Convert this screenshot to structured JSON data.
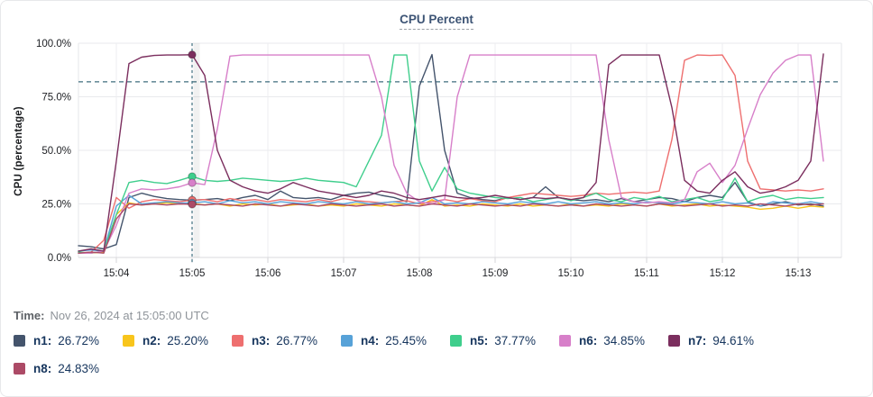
{
  "title": "CPU Percent",
  "time_row": {
    "label": "Time:",
    "value": "Nov 26, 2024 at 15:05:00 UTC"
  },
  "legend": {
    "items": [
      {
        "id": "n1",
        "label": "n1:",
        "value": "26.72%",
        "color": "#44546c"
      },
      {
        "id": "n2",
        "label": "n2:",
        "value": "25.20%",
        "color": "#f8c51c"
      },
      {
        "id": "n3",
        "label": "n3:",
        "value": "26.77%",
        "color": "#ee6f6f"
      },
      {
        "id": "n4",
        "label": "n4:",
        "value": "25.45%",
        "color": "#57a2d8"
      },
      {
        "id": "n5",
        "label": "n5:",
        "value": "37.77%",
        "color": "#3fce8c"
      },
      {
        "id": "n6",
        "label": "n6:",
        "value": "34.85%",
        "color": "#d77fc9"
      },
      {
        "id": "n7",
        "label": "n7:",
        "value": "94.61%",
        "color": "#7b2e5e"
      },
      {
        "id": "n8",
        "label": "n8:",
        "value": "24.83%",
        "color": "#ac4a66"
      }
    ]
  },
  "chart_data": {
    "type": "line",
    "title": "CPU Percent",
    "ylabel": "CPU (percentage)",
    "y_ticks": [
      "0.0%",
      "25.0%",
      "50.0%",
      "75.0%",
      "100.0%"
    ],
    "y_tick_values": [
      0,
      25,
      50,
      75,
      100
    ],
    "ylim": [
      0,
      100
    ],
    "x_ticks": [
      "15:04",
      "15:05",
      "15:06",
      "15:07",
      "15:08",
      "15:09",
      "15:10",
      "15:11",
      "15:12",
      "15:13"
    ],
    "grid": true,
    "legend_position": "bottom",
    "threshold_percent": 82,
    "crosshair": {
      "index": 9,
      "time_label": "15:05"
    },
    "t_minutes_from_1504": [
      -0.5,
      -0.333,
      -0.167,
      0,
      0.167,
      0.333,
      0.5,
      0.667,
      0.833,
      1,
      1.167,
      1.333,
      1.5,
      1.667,
      1.833,
      2,
      2.167,
      2.333,
      2.5,
      2.667,
      2.833,
      3,
      3.167,
      3.333,
      3.5,
      3.667,
      3.833,
      4,
      4.167,
      4.333,
      4.5,
      4.667,
      4.833,
      5,
      5.167,
      5.333,
      5.5,
      5.667,
      5.833,
      6,
      6.167,
      6.333,
      6.5,
      6.667,
      6.833,
      7,
      7.167,
      7.333,
      7.5,
      7.667,
      7.833,
      8,
      8.167,
      8.333,
      8.5,
      8.667,
      8.833,
      9,
      9.167,
      9.333
    ],
    "series": [
      {
        "name": "n1",
        "color": "#44546c",
        "values": [
          5.5,
          5,
          4,
          6,
          28,
          30,
          28.5,
          27.5,
          27,
          26.72,
          27,
          27.5,
          26.5,
          28,
          29,
          27,
          31,
          28,
          27.5,
          28,
          27,
          29,
          30,
          30.5,
          29,
          28,
          26,
          80,
          94.7,
          50,
          30,
          28,
          27,
          26.5,
          28,
          27,
          28,
          33,
          28,
          27,
          26.5,
          27,
          26,
          27.5,
          26,
          27,
          28,
          27.5,
          26,
          28,
          29,
          28,
          35,
          26,
          24,
          25,
          26,
          24.5,
          25,
          24
        ]
      },
      {
        "name": "n2",
        "color": "#f8c51c",
        "values": [
          2.5,
          2,
          2.5,
          20,
          25.5,
          24.5,
          25,
          25.5,
          25,
          25.2,
          24.5,
          25,
          24,
          25,
          24.5,
          25,
          24,
          24.5,
          25,
          24,
          24.5,
          24,
          25,
          24.5,
          24,
          25,
          24.5,
          24,
          27,
          24,
          24.5,
          24,
          25,
          24.5,
          24,
          25,
          24,
          24.5,
          24,
          25,
          24,
          24.5,
          24,
          25,
          24.5,
          24,
          25,
          24,
          24.5,
          25,
          24,
          24.5,
          24,
          23.5,
          22.5,
          23,
          24,
          23,
          24,
          23.5
        ]
      },
      {
        "name": "n3",
        "color": "#ee6f6f",
        "values": [
          2,
          2.5,
          8,
          28,
          23,
          26,
          27,
          26.5,
          26,
          26.77,
          27,
          26,
          27.5,
          26.5,
          27,
          26,
          27,
          26.5,
          26,
          27,
          26,
          27.5,
          26.5,
          26,
          25.5,
          26,
          26.5,
          25,
          26,
          27,
          26,
          27.5,
          26.5,
          26,
          28,
          29,
          30,
          29.5,
          29,
          28.5,
          29,
          30,
          29.5,
          30,
          30.5,
          30,
          31,
          55,
          92,
          94.5,
          94.3,
          94.5,
          85,
          45,
          32,
          31.5,
          31,
          31.5,
          31,
          32
        ]
      },
      {
        "name": "n4",
        "color": "#57a2d8",
        "values": [
          3,
          3.5,
          3,
          24,
          29,
          25,
          25.5,
          26,
          25.5,
          25.45,
          26,
          25,
          26.5,
          25.5,
          26,
          25,
          26,
          25.5,
          25,
          26,
          25.5,
          25,
          26,
          25,
          25.5,
          26,
          25,
          25.5,
          28,
          25,
          25.5,
          25,
          26,
          25.5,
          25,
          26,
          25.5,
          25,
          26,
          25,
          25.5,
          26,
          25,
          25.5,
          25,
          26,
          25.5,
          25,
          26,
          25.5,
          25,
          26,
          25,
          25.5,
          24,
          26,
          25.5,
          25,
          26,
          25
        ]
      },
      {
        "name": "n5",
        "color": "#3fce8c",
        "values": [
          2.5,
          2,
          3,
          20,
          35,
          36,
          35,
          34.5,
          36,
          37.77,
          36,
          35.5,
          36,
          37,
          36.5,
          36,
          35.5,
          36,
          37,
          36,
          35.5,
          35,
          33,
          45,
          57,
          94.5,
          94.5,
          45,
          31,
          42,
          32,
          30,
          29,
          28,
          27.5,
          28,
          26,
          27,
          28,
          26.5,
          28,
          30,
          27,
          26,
          28,
          27,
          28.5,
          26,
          27,
          28,
          26,
          27,
          37,
          26,
          28,
          29,
          27,
          28,
          27.5,
          28
        ]
      },
      {
        "name": "n6",
        "color": "#d77fc9",
        "values": [
          2,
          2,
          3,
          15,
          30,
          32,
          31.5,
          32,
          33,
          34.85,
          34,
          60,
          94,
          94.5,
          94.5,
          94.5,
          94.5,
          94.5,
          94.5,
          94.5,
          94.5,
          94.5,
          94.5,
          94.5,
          75,
          43,
          30,
          26,
          25,
          27,
          75,
          94.5,
          94.5,
          94.5,
          94.5,
          94.5,
          94.5,
          94.5,
          94.5,
          94.5,
          94.5,
          94.5,
          55,
          28,
          26,
          25.5,
          26,
          25.5,
          27,
          40,
          44,
          35,
          43,
          60,
          76,
          86,
          92,
          94.5,
          94.5,
          45
        ]
      },
      {
        "name": "n7",
        "color": "#7b2e5e",
        "values": [
          3,
          4,
          3,
          45,
          90.5,
          93.5,
          94.3,
          94.5,
          94.5,
          94.61,
          85,
          50,
          36,
          33,
          31,
          30,
          32,
          35,
          33,
          31,
          30,
          29,
          28,
          29,
          31,
          30,
          28,
          27,
          28,
          29,
          28,
          27.5,
          28,
          29,
          28,
          27,
          28,
          27.5,
          28,
          27,
          28,
          35,
          90,
          94.5,
          94.5,
          94.5,
          94.5,
          70,
          36,
          31,
          30,
          36,
          40,
          33,
          30,
          31,
          33,
          36,
          45,
          95
        ]
      },
      {
        "name": "n8",
        "color": "#ac4a66",
        "values": [
          2,
          2.5,
          2,
          18,
          25,
          24.5,
          25,
          24.5,
          25,
          24.83,
          24.5,
          25,
          24.5,
          24,
          25,
          24.5,
          24,
          25,
          24.5,
          24,
          25,
          24.5,
          24,
          24.5,
          25,
          24,
          24.5,
          24,
          25,
          24.5,
          24,
          25,
          24.5,
          24,
          24.5,
          24,
          25,
          24.5,
          24,
          24.5,
          24,
          25,
          24.5,
          24,
          24.5,
          24,
          25,
          24.5,
          24,
          24.5,
          25,
          24,
          24.5,
          24,
          25,
          24.5,
          24,
          25,
          24.5,
          25
        ]
      }
    ]
  }
}
